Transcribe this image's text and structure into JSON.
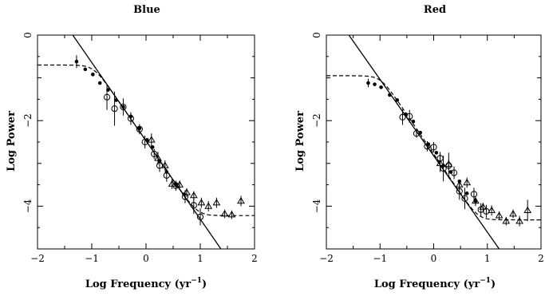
{
  "chart_data": [
    {
      "type": "scatter",
      "title": "Blue",
      "xlabel": "Log Frequency (yr",
      "xlabel_sup": "−1",
      "xlabel_close": ")",
      "ylabel": "Log Power",
      "xlim": [
        -2,
        2
      ],
      "ylim": [
        -5,
        0
      ],
      "xticks": [
        -2,
        -1,
        0,
        1,
        2
      ],
      "xtick_labels": [
        "−2",
        "−1",
        "0",
        "1",
        "2"
      ],
      "yticks": [
        0,
        -2,
        -4
      ],
      "ytick_labels": [
        "0",
        "−2",
        "−4"
      ],
      "grid": false,
      "series": [
        {
          "marker": "filled-circle",
          "points": [
            {
              "x": -1.28,
              "y": -0.62,
              "err": 0.15
            },
            {
              "x": -1.12,
              "y": -0.8,
              "err": 0.0
            },
            {
              "x": -0.98,
              "y": -0.92,
              "err": 0.0
            },
            {
              "x": -0.85,
              "y": -1.12,
              "err": 0.0
            },
            {
              "x": -0.7,
              "y": -1.28,
              "err": 0.0
            },
            {
              "x": -0.55,
              "y": -1.52,
              "err": 0.0
            },
            {
              "x": -0.42,
              "y": -1.68,
              "err": 0.0
            },
            {
              "x": -0.28,
              "y": -1.9,
              "err": 0.0
            },
            {
              "x": -0.12,
              "y": -2.18,
              "err": 0.0
            },
            {
              "x": 0.02,
              "y": -2.45,
              "err": 0.0
            },
            {
              "x": 0.12,
              "y": -2.62,
              "err": 0.0
            },
            {
              "x": 0.25,
              "y": -2.95,
              "err": 0.0
            },
            {
              "x": 0.38,
              "y": -3.2,
              "err": 0.0
            },
            {
              "x": 0.55,
              "y": -3.48,
              "err": 0.0
            },
            {
              "x": 0.7,
              "y": -3.72,
              "err": 0.0
            }
          ]
        },
        {
          "marker": "open-circle",
          "points": [
            {
              "x": -0.72,
              "y": -1.45,
              "err": 0.3
            },
            {
              "x": -0.58,
              "y": -1.72,
              "err": 0.4
            },
            {
              "x": -0.42,
              "y": -1.68,
              "err": 0.2
            },
            {
              "x": -0.28,
              "y": -1.95,
              "err": 0.15
            },
            {
              "x": -0.12,
              "y": -2.2,
              "err": 0.12
            },
            {
              "x": -0.02,
              "y": -2.5,
              "err": 0.15
            },
            {
              "x": 0.15,
              "y": -2.78,
              "err": 0.12
            },
            {
              "x": 0.25,
              "y": -3.05,
              "err": 0.15
            },
            {
              "x": 0.38,
              "y": -3.28,
              "err": 0.15
            },
            {
              "x": 0.55,
              "y": -3.52,
              "err": 0.12
            },
            {
              "x": 0.72,
              "y": -3.78,
              "err": 0.15
            },
            {
              "x": 0.88,
              "y": -3.98,
              "err": 0.2
            },
            {
              "x": 1.0,
              "y": -4.25,
              "err": 0.2
            }
          ]
        },
        {
          "marker": "open-triangle",
          "points": [
            {
              "x": 0.1,
              "y": -2.45,
              "err": 0.15
            },
            {
              "x": 0.22,
              "y": -2.88,
              "err": 0.15
            },
            {
              "x": 0.35,
              "y": -3.05,
              "err": 0.12
            },
            {
              "x": 0.48,
              "y": -3.48,
              "err": 0.12
            },
            {
              "x": 0.62,
              "y": -3.5,
              "err": 0.1
            },
            {
              "x": 0.75,
              "y": -3.68,
              "err": 0.1
            },
            {
              "x": 0.88,
              "y": -3.75,
              "err": 0.1
            },
            {
              "x": 1.02,
              "y": -3.92,
              "err": 0.12
            },
            {
              "x": 1.15,
              "y": -4.0,
              "err": 0.12
            },
            {
              "x": 1.3,
              "y": -3.92,
              "err": 0.12
            },
            {
              "x": 1.45,
              "y": -4.18,
              "err": 0.1
            },
            {
              "x": 1.58,
              "y": -4.2,
              "err": 0.1
            },
            {
              "x": 1.75,
              "y": -3.88,
              "err": 0.12
            }
          ]
        }
      ],
      "power_law_line": {
        "style": "solid",
        "x": [
          -1.35,
          1.38
        ],
        "y": [
          0.0,
          -5.0
        ]
      },
      "model_curve": {
        "style": "dashed",
        "low_level": -0.7,
        "high_level": -4.22,
        "slope": -1.83,
        "intercept": -2.47
      }
    },
    {
      "type": "scatter",
      "title": "Red",
      "xlabel": "Log Frequency (yr",
      "xlabel_sup": "−1",
      "xlabel_close": ")",
      "ylabel": "Log Power",
      "xlim": [
        -2,
        2
      ],
      "ylim": [
        -5,
        0
      ],
      "xticks": [
        -2,
        -1,
        0,
        1,
        2
      ],
      "xtick_labels": [
        "−2",
        "−1",
        "0",
        "1",
        "2"
      ],
      "yticks": [
        0,
        -2,
        -4
      ],
      "ytick_labels": [
        "0",
        "−2",
        "−4"
      ],
      "grid": false,
      "series": [
        {
          "marker": "filled-circle",
          "points": [
            {
              "x": -1.22,
              "y": -1.12,
              "err": 0.1
            },
            {
              "x": -1.1,
              "y": -1.15,
              "err": 0.0
            },
            {
              "x": -0.98,
              "y": -1.22,
              "err": 0.0
            },
            {
              "x": -0.82,
              "y": -1.4,
              "err": 0.0
            },
            {
              "x": -0.68,
              "y": -1.52,
              "err": 0.0
            },
            {
              "x": -0.52,
              "y": -1.85,
              "err": 0.0
            },
            {
              "x": -0.38,
              "y": -2.02,
              "err": 0.0
            },
            {
              "x": -0.25,
              "y": -2.28,
              "err": 0.0
            },
            {
              "x": -0.1,
              "y": -2.55,
              "err": 0.0
            },
            {
              "x": 0.05,
              "y": -2.75,
              "err": 0.0
            },
            {
              "x": 0.18,
              "y": -3.05,
              "err": 0.0
            },
            {
              "x": 0.32,
              "y": -3.2,
              "err": 0.0
            },
            {
              "x": 0.48,
              "y": -3.42,
              "err": 0.0
            },
            {
              "x": 0.62,
              "y": -3.7,
              "err": 0.0
            },
            {
              "x": 0.78,
              "y": -3.88,
              "err": 0.0
            }
          ]
        },
        {
          "marker": "open-circle",
          "points": [
            {
              "x": -0.58,
              "y": -1.92,
              "err": 0.18
            },
            {
              "x": -0.45,
              "y": -1.9,
              "err": 0.15
            },
            {
              "x": -0.32,
              "y": -2.3,
              "err": 0.1
            },
            {
              "x": -0.12,
              "y": -2.6,
              "err": 0.12
            },
            {
              "x": 0.0,
              "y": -2.62,
              "err": 0.12
            },
            {
              "x": 0.12,
              "y": -2.88,
              "err": 0.15
            },
            {
              "x": 0.18,
              "y": -3.12,
              "err": 0.3
            },
            {
              "x": 0.28,
              "y": -3.05,
              "err": 0.3
            },
            {
              "x": 0.38,
              "y": -3.22,
              "err": 0.15
            },
            {
              "x": 0.48,
              "y": -3.65,
              "err": 0.2
            },
            {
              "x": 0.58,
              "y": -3.82,
              "err": 0.25
            },
            {
              "x": 0.75,
              "y": -3.72,
              "err": 0.15
            },
            {
              "x": 0.88,
              "y": -4.08,
              "err": 0.15
            },
            {
              "x": 0.98,
              "y": -4.12,
              "err": 0.15
            }
          ]
        },
        {
          "marker": "open-triangle",
          "points": [
            {
              "x": 0.12,
              "y": -3.0,
              "err": 0.2
            },
            {
              "x": 0.28,
              "y": -3.02,
              "err": 0.12
            },
            {
              "x": 0.48,
              "y": -3.5,
              "err": 0.12
            },
            {
              "x": 0.62,
              "y": -3.45,
              "err": 0.12
            },
            {
              "x": 0.78,
              "y": -3.88,
              "err": 0.12
            },
            {
              "x": 0.92,
              "y": -4.02,
              "err": 0.1
            },
            {
              "x": 1.08,
              "y": -4.1,
              "err": 0.12
            },
            {
              "x": 1.22,
              "y": -4.22,
              "err": 0.1
            },
            {
              "x": 1.35,
              "y": -4.35,
              "err": 0.1
            },
            {
              "x": 1.48,
              "y": -4.18,
              "err": 0.1
            },
            {
              "x": 1.6,
              "y": -4.35,
              "err": 0.12
            },
            {
              "x": 1.75,
              "y": -4.1,
              "err": 0.25
            }
          ]
        }
      ],
      "power_law_line": {
        "style": "solid",
        "x": [
          -1.58,
          1.22
        ],
        "y": [
          0.0,
          -5.0
        ]
      },
      "model_curve": {
        "style": "dashed",
        "low_level": -0.95,
        "high_level": -4.32,
        "slope": -1.85,
        "intercept": -2.78
      }
    }
  ]
}
